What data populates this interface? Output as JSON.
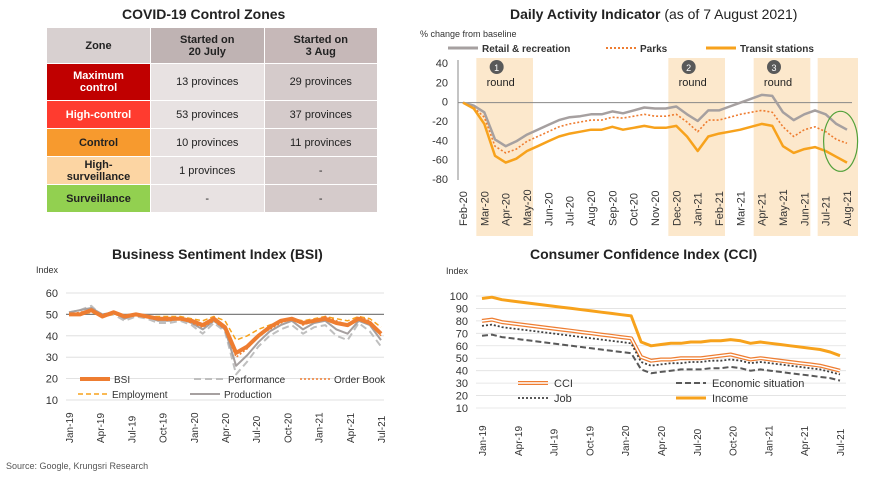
{
  "zones": {
    "title": "COVID-19 Control Zones",
    "headers": [
      "Zone",
      "Started on\n20 July",
      "Started on\n3 Aug"
    ],
    "header_colors": [
      "#d8d0d0",
      "#bfb3b3",
      "#c6b8b8"
    ],
    "col_colors": [
      "#e8e2e2",
      "#d5cbcb"
    ],
    "rows": [
      {
        "zone": "Maximum\ncontrol",
        "c1": "13 provinces",
        "c2": "29 provinces",
        "color": "#c00000",
        "text_color": "#ffffff"
      },
      {
        "zone": "High-control",
        "c1": "53 provinces",
        "c2": "37 provinces",
        "color": "#ff3b2f",
        "text_color": "#ffffff"
      },
      {
        "zone": "Control",
        "c1": "10 provinces",
        "c2": "11 provinces",
        "color": "#f79a2e",
        "text_color": "#222222"
      },
      {
        "zone": "High-\nsurveillance",
        "c1": "1 provinces",
        "c2": "-",
        "color": "#fcd5a3",
        "text_color": "#222222"
      },
      {
        "zone": "Surveillance",
        "c1": "-",
        "c2": "-",
        "color": "#92d050",
        "text_color": "#222222"
      }
    ]
  },
  "source": "Source: Google, Krungsri Research",
  "chart_data": [
    {
      "type": "line",
      "title": "Daily Activity Indicator",
      "subtitle": "(as of 7 August 2021)",
      "ylabel": "% change from baseline",
      "ylim": [
        -80,
        40
      ],
      "yticks": [
        40,
        20,
        0,
        -20,
        -40,
        -60,
        -80
      ],
      "x_labels": [
        "Feb-20",
        "Mar-20",
        "Apr-20",
        "May-20",
        "Jun-20",
        "Jul-20",
        "Aug-20",
        "Sep-20",
        "Oct-20",
        "Nov-20",
        "Dec-20",
        "Jan-21",
        "Feb-21",
        "Mar-21",
        "Apr-21",
        "May-21",
        "Jun-21",
        "Jul-21",
        "Aug-21"
      ],
      "legend": [
        "Retail & recreation",
        "Parks",
        "Transit stations"
      ],
      "colors": {
        "retail": "#a6a0a0",
        "parks": "#ee7d31",
        "transit": "#f7a21c",
        "shade": "#fce8cc",
        "circle": "#53a13b"
      },
      "annotations": [
        {
          "num": "1",
          "text": "round",
          "start": "Mar-20",
          "end": "May-20"
        },
        {
          "num": "2",
          "text": "round",
          "start": "Dec-20",
          "end": "Feb-21"
        },
        {
          "num": "3",
          "text": "round",
          "start": "Apr-21",
          "end": "Jun-21"
        }
      ],
      "shade_latest": {
        "start": "Jul-21",
        "end": "Aug-21"
      },
      "series": [
        {
          "name": "Retail & recreation",
          "x": [
            0,
            0.5,
            1,
            1.5,
            2,
            2.5,
            3,
            3.5,
            4,
            4.5,
            5,
            5.5,
            6,
            6.5,
            7,
            7.5,
            8,
            8.5,
            9,
            9.5,
            10,
            10.5,
            11,
            11.5,
            12,
            12.5,
            13,
            13.5,
            14,
            14.5,
            15,
            15.5,
            16,
            16.5,
            17,
            17.5,
            18
          ],
          "values": [
            0,
            -3,
            -10,
            -38,
            -45,
            -40,
            -33,
            -28,
            -23,
            -18,
            -15,
            -14,
            -12,
            -12,
            -9,
            -11,
            -8,
            -5,
            -6,
            -6,
            -4,
            -12,
            -19,
            -8,
            -8,
            -4,
            0,
            4,
            8,
            7,
            -10,
            -18,
            -12,
            -8,
            -12,
            -22,
            -28
          ]
        },
        {
          "name": "Parks",
          "x": [
            0,
            0.5,
            1,
            1.5,
            2,
            2.5,
            3,
            3.5,
            4,
            4.5,
            5,
            5.5,
            6,
            6.5,
            7,
            7.5,
            8,
            8.5,
            9,
            9.5,
            10,
            10.5,
            11,
            11.5,
            12,
            12.5,
            13,
            13.5,
            14,
            14.5,
            15,
            15.5,
            16,
            16.5,
            17,
            17.5,
            18
          ],
          "values": [
            0,
            -5,
            -15,
            -45,
            -52,
            -48,
            -40,
            -35,
            -30,
            -25,
            -22,
            -20,
            -18,
            -18,
            -15,
            -16,
            -14,
            -12,
            -14,
            -14,
            -12,
            -20,
            -30,
            -18,
            -18,
            -15,
            -12,
            -10,
            -8,
            -10,
            -25,
            -35,
            -28,
            -25,
            -30,
            -38,
            -42
          ]
        },
        {
          "name": "Transit stations",
          "x": [
            0,
            0.5,
            1,
            1.5,
            2,
            2.5,
            3,
            3.5,
            4,
            4.5,
            5,
            5.5,
            6,
            6.5,
            7,
            7.5,
            8,
            8.5,
            9,
            9.5,
            10,
            10.5,
            11,
            11.5,
            12,
            12.5,
            13,
            13.5,
            14,
            14.5,
            15,
            15.5,
            16,
            16.5,
            17,
            17.5,
            18
          ],
          "values": [
            0,
            -6,
            -22,
            -55,
            -62,
            -58,
            -50,
            -45,
            -40,
            -35,
            -32,
            -30,
            -28,
            -28,
            -25,
            -28,
            -26,
            -24,
            -26,
            -26,
            -24,
            -35,
            -50,
            -35,
            -32,
            -30,
            -28,
            -25,
            -22,
            -24,
            -45,
            -52,
            -48,
            -46,
            -50,
            -56,
            -62
          ]
        }
      ]
    },
    {
      "type": "line",
      "title": "Business Sentiment Index (BSI)",
      "ylabel": "Index",
      "ylim": [
        10,
        60
      ],
      "yticks": [
        60,
        50,
        40,
        30,
        20,
        10
      ],
      "reference_line": 50,
      "x_labels": [
        "Jan-19",
        "Apr-19",
        "Jul-19",
        "Oct-19",
        "Jan-20",
        "Apr-20",
        "Jul-20",
        "Oct-20",
        "Jan-21",
        "Apr-21",
        "Jul-21"
      ],
      "legend": [
        "BSI",
        "Performance",
        "Order Book",
        "Employment",
        "Production"
      ],
      "colors": {
        "bsi": "#ee7d31",
        "performance": "#bfbfbf",
        "orderbook": "#ee7d31",
        "employment": "#f7a21c",
        "production": "#a6a0a0"
      },
      "series": [
        {
          "name": "BSI",
          "values": [
            50,
            50,
            52,
            49,
            51,
            49,
            50,
            49,
            48,
            48,
            48,
            47,
            45,
            48,
            44,
            32,
            35,
            40,
            44,
            47,
            48,
            46,
            47,
            48,
            46,
            45,
            48,
            46,
            41
          ]
        },
        {
          "name": "Performance",
          "values": [
            51,
            52,
            54,
            49,
            50,
            47,
            49,
            48,
            46,
            46,
            47,
            45,
            41,
            46,
            42,
            22,
            28,
            35,
            40,
            43,
            45,
            41,
            44,
            45,
            40,
            38,
            46,
            42,
            35
          ]
        },
        {
          "name": "Order Book",
          "values": [
            50,
            51,
            52,
            50,
            51,
            49,
            50,
            49,
            48,
            47,
            48,
            46,
            44,
            47,
            43,
            30,
            34,
            40,
            43,
            46,
            48,
            45,
            47,
            49,
            47,
            45,
            49,
            47,
            40
          ]
        },
        {
          "name": "Employment",
          "values": [
            50,
            50,
            51,
            49,
            50,
            49,
            50,
            49,
            49,
            49,
            49,
            48,
            47,
            49,
            47,
            38,
            40,
            43,
            45,
            47,
            48,
            47,
            48,
            49,
            48,
            47,
            49,
            48,
            44
          ]
        },
        {
          "name": "Production",
          "values": [
            51,
            52,
            53,
            50,
            51,
            48,
            50,
            49,
            47,
            47,
            48,
            46,
            43,
            47,
            43,
            26,
            31,
            37,
            42,
            45,
            47,
            43,
            46,
            47,
            43,
            41,
            47,
            45,
            38
          ]
        }
      ]
    },
    {
      "type": "line",
      "title": "Consumer Confidence Index (CCI)",
      "ylabel": "Index",
      "ylim": [
        10,
        100
      ],
      "yticks": [
        100,
        90,
        80,
        70,
        60,
        50,
        40,
        30,
        20,
        10
      ],
      "x_labels": [
        "Jan-19",
        "Apr-19",
        "Jul-19",
        "Oct-19",
        "Jan-20",
        "Apr-20",
        "Jul-20",
        "Oct-20",
        "Jan-21",
        "Apr-21",
        "Jul-21"
      ],
      "legend": [
        "CCI",
        "Economic situation",
        "Job",
        "Income"
      ],
      "colors": {
        "cci": "#ee7d31",
        "economic": "#595959",
        "job": "#404040",
        "income": "#f7a21c"
      },
      "series": [
        {
          "name": "CCI",
          "values": [
            80,
            81,
            79,
            78,
            77,
            76,
            75,
            74,
            73,
            72,
            71,
            70,
            69,
            68,
            67,
            66,
            51,
            48,
            49,
            49,
            50,
            50,
            50,
            51,
            52,
            53,
            51,
            49,
            50,
            49,
            48,
            47,
            46,
            45,
            44,
            42,
            40
          ]
        },
        {
          "name": "Economic situation",
          "values": [
            68,
            69,
            67,
            66,
            65,
            64,
            63,
            62,
            61,
            60,
            59,
            58,
            57,
            56,
            55,
            54,
            41,
            38,
            39,
            40,
            41,
            41,
            41,
            42,
            42,
            43,
            42,
            40,
            41,
            40,
            39,
            38,
            37,
            36,
            35,
            34,
            32
          ]
        },
        {
          "name": "Job",
          "values": [
            76,
            77,
            75,
            74,
            73,
            72,
            71,
            70,
            69,
            68,
            67,
            66,
            65,
            64,
            63,
            62,
            47,
            44,
            45,
            46,
            46,
            47,
            47,
            48,
            48,
            49,
            48,
            46,
            47,
            46,
            45,
            44,
            43,
            42,
            41,
            39,
            37
          ]
        },
        {
          "name": "Income",
          "values": [
            98,
            99,
            97,
            96,
            95,
            94,
            93,
            92,
            91,
            90,
            89,
            88,
            87,
            86,
            85,
            84,
            63,
            60,
            61,
            62,
            62,
            63,
            63,
            64,
            64,
            65,
            64,
            62,
            63,
            62,
            61,
            60,
            59,
            58,
            57,
            55,
            52
          ]
        }
      ]
    }
  ]
}
